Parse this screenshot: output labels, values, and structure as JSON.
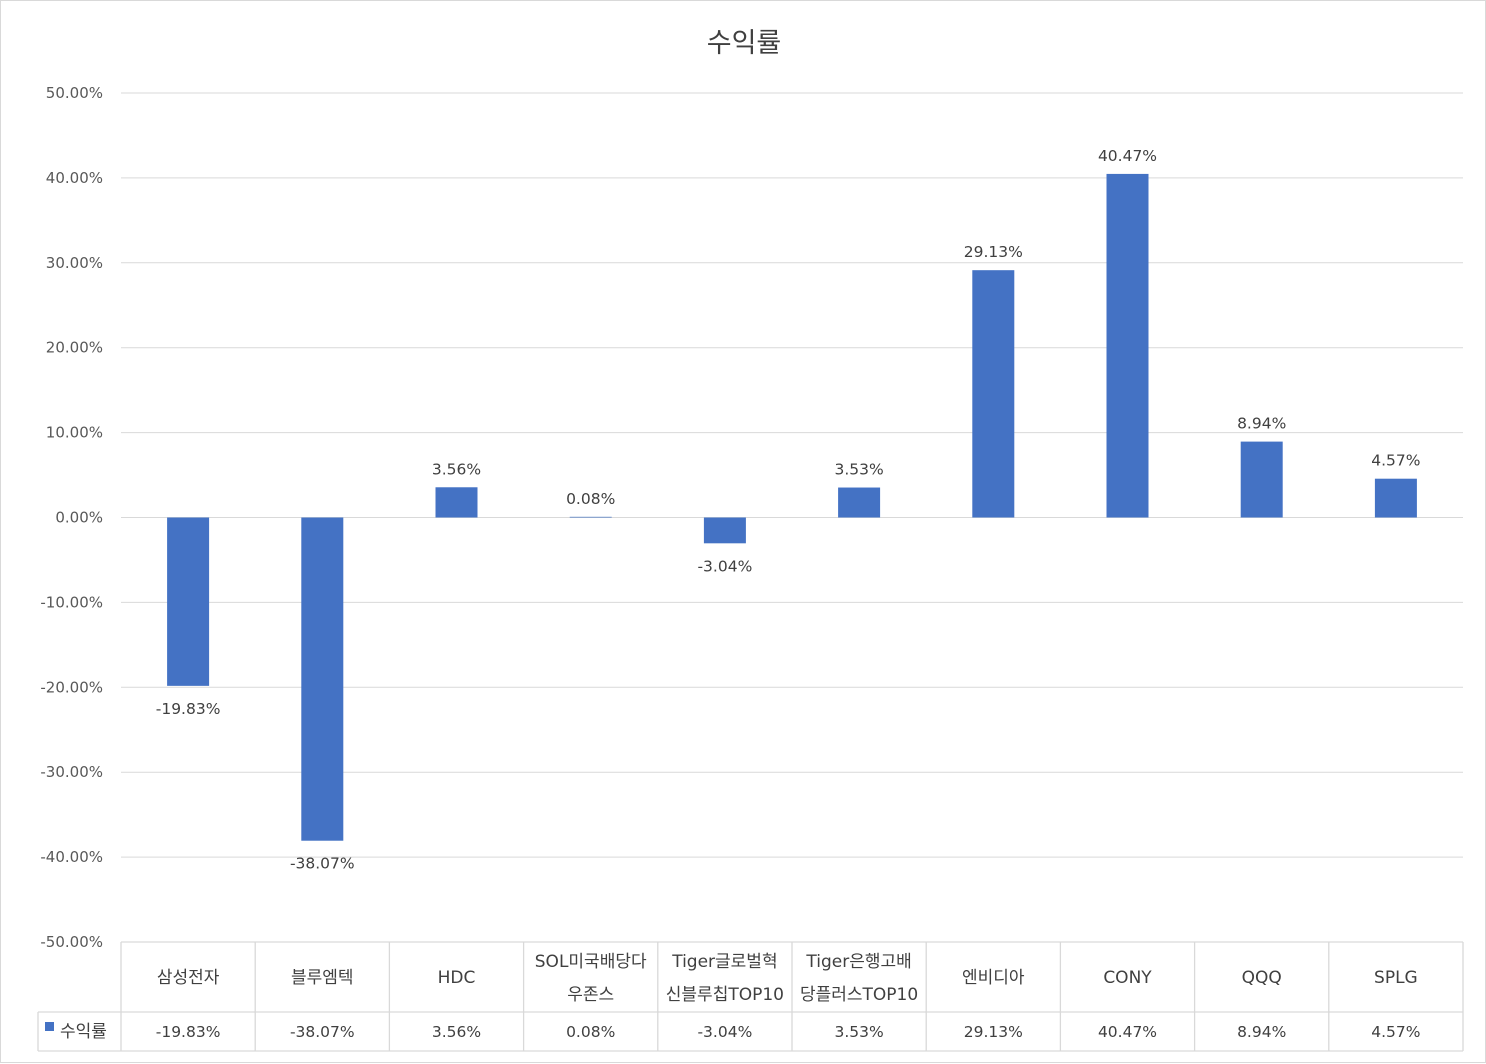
{
  "chart_data": {
    "type": "bar",
    "title": "수익률",
    "categories": [
      [
        "삼성전자"
      ],
      [
        "블루엠텍"
      ],
      [
        "HDC"
      ],
      [
        "SOL미국배당다",
        "우존스"
      ],
      [
        "Tiger글로벌혁",
        "신블루칩TOP10"
      ],
      [
        "Tiger은행고배",
        "당플러스TOP10"
      ],
      [
        "엔비디아"
      ],
      [
        "CONY"
      ],
      [
        "QQQ"
      ],
      [
        "SPLG"
      ]
    ],
    "series": [
      {
        "name": "수익률",
        "values": [
          -19.83,
          -38.07,
          3.56,
          0.08,
          -3.04,
          3.53,
          29.13,
          40.47,
          8.94,
          4.57
        ],
        "labels": [
          "-19.83%",
          "-38.07%",
          "3.56%",
          "0.08%",
          "-3.04%",
          "3.53%",
          "29.13%",
          "40.47%",
          "8.94%",
          "4.57%"
        ],
        "color": "#4472C4"
      }
    ],
    "yticks": [
      "50.00%",
      "40.00%",
      "30.00%",
      "20.00%",
      "10.00%",
      "0.00%",
      "-10.00%",
      "-20.00%",
      "-30.00%",
      "-40.00%",
      "-50.00%"
    ],
    "ylim": [
      -50,
      50
    ],
    "ytick_step": 10,
    "grid": true,
    "data_table": true,
    "colors": {
      "bar": "#4472C4",
      "grid": "#d9d9d9",
      "text": "#404040"
    }
  }
}
